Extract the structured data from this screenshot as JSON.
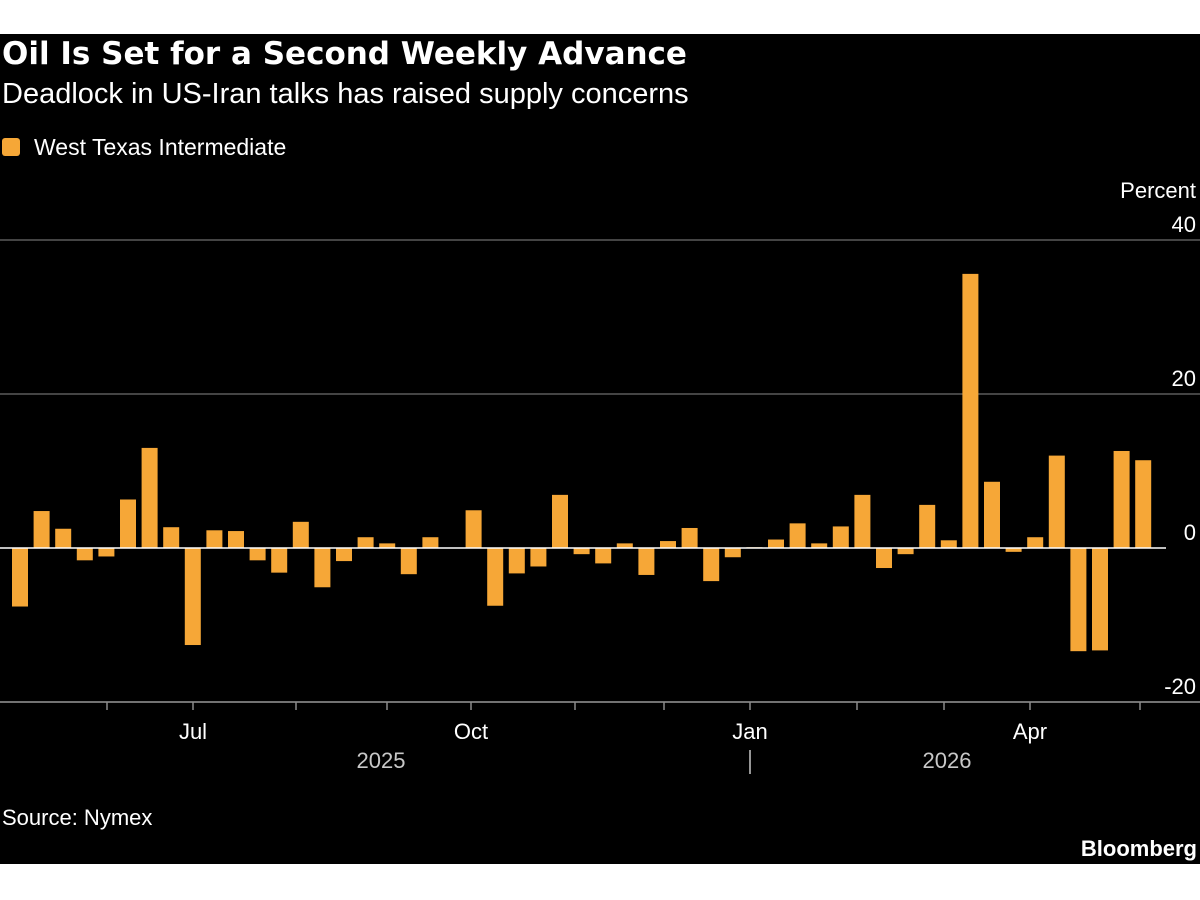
{
  "chart_data": {
    "type": "bar",
    "title": "Oil Is Set for a Second Weekly Advance",
    "subtitle": "Deadlock in US-Iran talks has raised supply concerns",
    "ylabel": "Percent",
    "ylim": [
      -20,
      40
    ],
    "yticks": [
      "40",
      "20",
      "0",
      "-20"
    ],
    "xticks": [
      "Jul",
      "Oct",
      "Jan",
      "Apr"
    ],
    "years": [
      "2025",
      "2026"
    ],
    "grid": true,
    "legend_position": "top-left",
    "series": [
      {
        "name": "West Texas Intermediate",
        "color": "#f6a737",
        "values": [
          -7.6,
          4.8,
          2.5,
          -1.6,
          -1.1,
          6.3,
          13.0,
          2.7,
          -12.6,
          2.3,
          2.2,
          -1.6,
          -3.2,
          3.4,
          -5.1,
          -1.7,
          1.4,
          0.6,
          -3.4,
          1.4,
          0,
          4.9,
          -7.5,
          -3.3,
          -2.4,
          6.9,
          -0.8,
          -2.0,
          0.6,
          -3.5,
          0.9,
          2.6,
          -4.3,
          -1.2,
          0.1,
          1.1,
          3.2,
          0.6,
          2.8,
          6.9,
          -2.6,
          -0.8,
          5.6,
          1.0,
          35.6,
          8.6,
          -0.5,
          1.4,
          12.0,
          -13.4,
          -13.3,
          12.6,
          11.4
        ]
      }
    ],
    "source": "Source: Nymex",
    "brand": "Bloomberg"
  },
  "colors": {
    "background": "#000000",
    "bar": "#f6a737",
    "grid": "#5a5a5a",
    "zero_line": "#ffffff",
    "text": "#ffffff"
  }
}
